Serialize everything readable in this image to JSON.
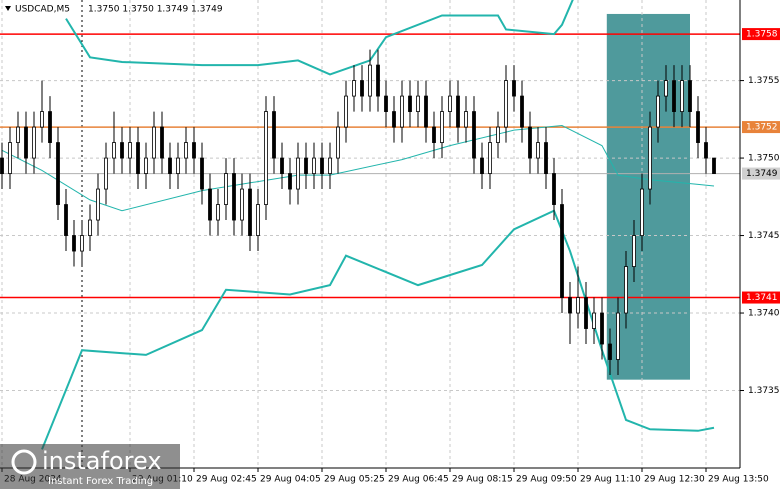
{
  "chart_data": {
    "type": "candlestick",
    "symbol": "USDCAD,M5",
    "quote": "1.3750 1.3750 1.3749 1.3749",
    "ylim": [
      1.373,
      1.37602
    ],
    "yticks": [
      1.3755,
      {
        "value": 1.375,
        "label": "1.3750"
      },
      1.3745,
      {
        "value": 1.374,
        "label": "1.3740"
      },
      1.3735
    ],
    "xlim": [
      -0.25,
      92.25
    ],
    "xticks": [
      {
        "value": 0,
        "label": "28 Aug 2024"
      },
      {
        "value": 16,
        "label": "29 Aug 01:10"
      },
      {
        "value": 24,
        "label": "29 Aug 02:45"
      },
      {
        "value": 32,
        "label": "29 Aug 04:05"
      },
      {
        "value": 40,
        "label": "29 Aug 05:25"
      },
      {
        "value": 48,
        "label": "29 Aug 06:45"
      },
      {
        "value": 56,
        "label": "29 Aug 08:15"
      },
      {
        "value": 64,
        "label": "29 Aug 09:50"
      },
      {
        "value": 72,
        "label": "29 Aug 11:10"
      },
      {
        "value": 80,
        "label": "29 Aug 12:30"
      },
      {
        "value": 88,
        "label": "29 Aug 13:50"
      }
    ],
    "grid": true,
    "ohlc": [
      [
        1.375,
        1.3751,
        1.3748,
        1.3749
      ],
      [
        1.3749,
        1.3752,
        1.3748,
        1.3751
      ],
      [
        1.3751,
        1.3753,
        1.375,
        1.3752
      ],
      [
        1.3752,
        1.3753,
        1.3749,
        1.375
      ],
      [
        1.375,
        1.3753,
        1.3749,
        1.3752
      ],
      [
        1.3752,
        1.3755,
        1.3751,
        1.3753
      ],
      [
        1.3753,
        1.3754,
        1.375,
        1.3751
      ],
      [
        1.3751,
        1.3752,
        1.3746,
        1.3747
      ],
      [
        1.3747,
        1.3748,
        1.3744,
        1.3745
      ],
      [
        1.3745,
        1.3746,
        1.3743,
        1.3744
      ],
      [
        1.3744,
        1.3746,
        1.3743,
        1.3745
      ],
      [
        1.3745,
        1.3747,
        1.3744,
        1.3746
      ],
      [
        1.3746,
        1.3749,
        1.3745,
        1.3748
      ],
      [
        1.3748,
        1.3751,
        1.3747,
        1.375
      ],
      [
        1.375,
        1.3753,
        1.3749,
        1.3751
      ],
      [
        1.3751,
        1.3752,
        1.3749,
        1.375
      ],
      [
        1.375,
        1.3752,
        1.3749,
        1.3751
      ],
      [
        1.3751,
        1.3752,
        1.3748,
        1.3749
      ],
      [
        1.3749,
        1.3751,
        1.3748,
        1.375
      ],
      [
        1.375,
        1.3753,
        1.3749,
        1.3752
      ],
      [
        1.3752,
        1.3753,
        1.3749,
        1.375
      ],
      [
        1.375,
        1.3751,
        1.3748,
        1.3749
      ],
      [
        1.3749,
        1.3751,
        1.3748,
        1.375
      ],
      [
        1.375,
        1.3752,
        1.3749,
        1.3751
      ],
      [
        1.3751,
        1.3752,
        1.3749,
        1.375
      ],
      [
        1.375,
        1.3751,
        1.3747,
        1.3748
      ],
      [
        1.3748,
        1.3749,
        1.3745,
        1.3746
      ],
      [
        1.3746,
        1.3748,
        1.3745,
        1.3747
      ],
      [
        1.3747,
        1.375,
        1.3746,
        1.3749
      ],
      [
        1.3749,
        1.375,
        1.3745,
        1.3746
      ],
      [
        1.3746,
        1.3749,
        1.3745,
        1.3748
      ],
      [
        1.3748,
        1.3749,
        1.3744,
        1.3745
      ],
      [
        1.3745,
        1.3748,
        1.3744,
        1.3747
      ],
      [
        1.3747,
        1.3754,
        1.3746,
        1.3753
      ],
      [
        1.3753,
        1.3754,
        1.3749,
        1.375
      ],
      [
        1.375,
        1.3751,
        1.3748,
        1.3749
      ],
      [
        1.3749,
        1.375,
        1.3747,
        1.3748
      ],
      [
        1.3748,
        1.3751,
        1.3747,
        1.375
      ],
      [
        1.375,
        1.3751,
        1.3748,
        1.3749
      ],
      [
        1.3749,
        1.3751,
        1.3748,
        1.375
      ],
      [
        1.375,
        1.3751,
        1.3748,
        1.3749
      ],
      [
        1.3749,
        1.3751,
        1.3748,
        1.375
      ],
      [
        1.375,
        1.3753,
        1.3749,
        1.3752
      ],
      [
        1.3752,
        1.3755,
        1.3751,
        1.3754
      ],
      [
        1.3754,
        1.3756,
        1.3753,
        1.3755
      ],
      [
        1.3755,
        1.3756,
        1.3753,
        1.3754
      ],
      [
        1.3754,
        1.3757,
        1.3753,
        1.3756
      ],
      [
        1.3756,
        1.3757,
        1.3753,
        1.3754
      ],
      [
        1.3754,
        1.3755,
        1.3752,
        1.3753
      ],
      [
        1.3753,
        1.3754,
        1.3751,
        1.3752
      ],
      [
        1.3752,
        1.3755,
        1.3751,
        1.3754
      ],
      [
        1.3754,
        1.3755,
        1.3752,
        1.3753
      ],
      [
        1.3753,
        1.3755,
        1.3752,
        1.3754
      ],
      [
        1.3754,
        1.3755,
        1.3751,
        1.3752
      ],
      [
        1.3752,
        1.3753,
        1.375,
        1.3751
      ],
      [
        1.3751,
        1.3754,
        1.375,
        1.3753
      ],
      [
        1.3753,
        1.3755,
        1.3752,
        1.3754
      ],
      [
        1.3754,
        1.3755,
        1.3751,
        1.3752
      ],
      [
        1.3752,
        1.3754,
        1.3751,
        1.3753
      ],
      [
        1.3753,
        1.3754,
        1.3749,
        1.375
      ],
      [
        1.375,
        1.3751,
        1.3748,
        1.3749
      ],
      [
        1.3749,
        1.3752,
        1.3748,
        1.3751
      ],
      [
        1.3751,
        1.3753,
        1.375,
        1.3752
      ],
      [
        1.3752,
        1.3756,
        1.3751,
        1.3755
      ],
      [
        1.3755,
        1.3756,
        1.3753,
        1.3754
      ],
      [
        1.3754,
        1.3755,
        1.3751,
        1.3752
      ],
      [
        1.3752,
        1.3753,
        1.3749,
        1.375
      ],
      [
        1.375,
        1.3752,
        1.3749,
        1.3751
      ],
      [
        1.3751,
        1.3752,
        1.3748,
        1.3749
      ],
      [
        1.3749,
        1.375,
        1.3746,
        1.3747
      ],
      [
        1.3747,
        1.3748,
        1.374,
        1.3741
      ],
      [
        1.3741,
        1.3742,
        1.3738,
        1.374
      ],
      [
        1.374,
        1.3743,
        1.3739,
        1.3741
      ],
      [
        1.3741,
        1.3742,
        1.3738,
        1.3739
      ],
      [
        1.3739,
        1.3741,
        1.3738,
        1.374
      ],
      [
        1.374,
        1.3741,
        1.3737,
        1.3738
      ],
      [
        1.3738,
        1.3739,
        1.3736,
        1.3737
      ],
      [
        1.3737,
        1.3741,
        1.3736,
        1.374
      ],
      [
        1.374,
        1.3744,
        1.3739,
        1.3743
      ],
      [
        1.3743,
        1.3746,
        1.3742,
        1.3745
      ],
      [
        1.3745,
        1.3749,
        1.3744,
        1.3748
      ],
      [
        1.3748,
        1.3753,
        1.3747,
        1.3752
      ],
      [
        1.3752,
        1.3755,
        1.3751,
        1.3754
      ],
      [
        1.3754,
        1.3756,
        1.3753,
        1.3755
      ],
      [
        1.3755,
        1.3756,
        1.3752,
        1.3753
      ],
      [
        1.3753,
        1.3756,
        1.3752,
        1.3755
      ],
      [
        1.3755,
        1.3756,
        1.3752,
        1.3753
      ],
      [
        1.3753,
        1.3754,
        1.375,
        1.3751
      ],
      [
        1.3751,
        1.3752,
        1.3749,
        1.375
      ],
      [
        1.375,
        1.375,
        1.3749,
        1.3749
      ]
    ],
    "band_color": "#22b5ac",
    "upper_band": {
      "x": [
        8,
        11,
        15,
        25,
        32,
        37,
        41,
        46,
        48,
        55,
        62,
        63,
        69,
        70,
        72
      ],
      "values": [
        1.3759,
        1.37565,
        1.37562,
        1.3756,
        1.3756,
        1.37563,
        1.37554,
        1.37563,
        1.37578,
        1.37592,
        1.37592,
        1.37583,
        1.3758,
        1.37586,
        1.3761
      ]
    },
    "middle_band": {
      "x": [
        0,
        5,
        11,
        15,
        25,
        37,
        41,
        50,
        56,
        64,
        70,
        75,
        77,
        81,
        87,
        89
      ],
      "values": [
        1.37505,
        1.37492,
        1.37473,
        1.37466,
        1.37479,
        1.37489,
        1.37489,
        1.37499,
        1.37508,
        1.37518,
        1.37521,
        1.37508,
        1.37489,
        1.37486,
        1.37483,
        1.37482
      ]
    },
    "lower_band": {
      "x": [
        5,
        10,
        18,
        25,
        28,
        36,
        41,
        43,
        52,
        60,
        64,
        69,
        71,
        75,
        78,
        81,
        87,
        89
      ],
      "values": [
        1.37312,
        1.37376,
        1.37373,
        1.37389,
        1.37415,
        1.37412,
        1.37418,
        1.37437,
        1.37418,
        1.37431,
        1.37454,
        1.37466,
        1.3744,
        1.37376,
        1.37331,
        1.37325,
        1.37324,
        1.37326
      ]
    },
    "levels": [
      {
        "price": 1.3758,
        "color": "#ff0000"
      },
      {
        "price": 1.3752,
        "color": "#e8833a"
      },
      {
        "price": 1.3741,
        "color": "#ff0000"
      }
    ],
    "last_price": 1.3749,
    "divider_x": 10,
    "highlight": {
      "x": [
        75.6,
        86
      ],
      "y": [
        1.37593,
        1.37357
      ],
      "color": "#4f9a9c"
    },
    "watermark": {
      "brand": "instaforex",
      "tagline": "Instant Forex Trading"
    }
  }
}
